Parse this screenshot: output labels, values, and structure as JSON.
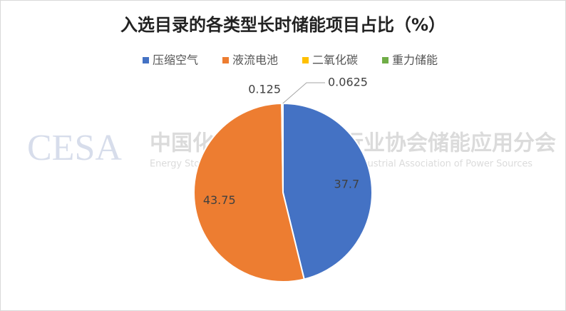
{
  "chart_data": {
    "type": "pie",
    "title": "入选目录的各类型长时储能项目占比（%）",
    "categories": [
      "压缩空气",
      "液流电池",
      "二氧化碳",
      "重力储能"
    ],
    "values": [
      37.7,
      43.75,
      0.125,
      0.0625
    ],
    "colors": [
      "#4472c4",
      "#ed7d31",
      "#ffc000",
      "#70ad47"
    ],
    "legend": "top",
    "watermark": {
      "logo": "CESA",
      "name": "中国化学与物理电源行业协会储能应用分会",
      "subtitle": "Energy Storage Application Branch of China Industrial Association of Power Sources"
    }
  }
}
